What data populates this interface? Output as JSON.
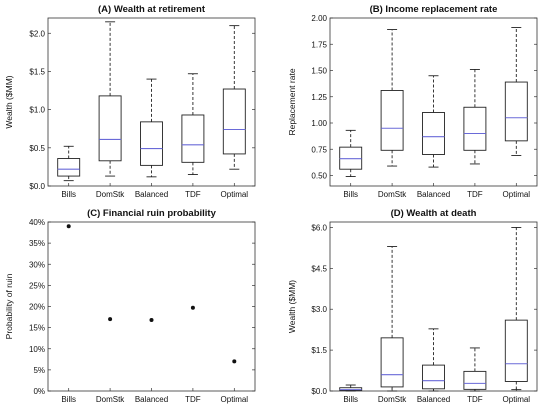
{
  "colors": {
    "box_stroke": "#222222",
    "median": "#6a6ad8",
    "axis": "#333333",
    "point": "#111111"
  },
  "chart_data": [
    {
      "panel": "A",
      "type": "box",
      "title": "(A) Wealth at retirement",
      "ylabel": "Wealth ($MM)",
      "categories": [
        "Bills",
        "DomStk",
        "Balanced",
        "TDF",
        "Optimal"
      ],
      "ylim": [
        0,
        2.2
      ],
      "yticks": [
        0,
        0.5,
        1.0,
        1.5,
        2.0
      ],
      "yticklabels": [
        "$0.0",
        "$0.5",
        "$1.0",
        "$1.5",
        "$2.0"
      ],
      "boxes": [
        {
          "min": 0.07,
          "q1": 0.13,
          "median": 0.22,
          "q3": 0.36,
          "max": 0.52
        },
        {
          "min": 0.13,
          "q1": 0.33,
          "median": 0.61,
          "q3": 1.18,
          "max": 2.15
        },
        {
          "min": 0.12,
          "q1": 0.27,
          "median": 0.49,
          "q3": 0.84,
          "max": 1.4
        },
        {
          "min": 0.15,
          "q1": 0.31,
          "median": 0.54,
          "q3": 0.93,
          "max": 1.47
        },
        {
          "min": 0.22,
          "q1": 0.42,
          "median": 0.74,
          "q3": 1.27,
          "max": 2.1
        }
      ]
    },
    {
      "panel": "B",
      "type": "box",
      "title": "(B) Income replacement rate",
      "ylabel": "Replacement rate",
      "categories": [
        "Bills",
        "DomStk",
        "Balanced",
        "TDF",
        "Optimal"
      ],
      "ylim": [
        0.4,
        2.0
      ],
      "yticks": [
        0.5,
        0.75,
        1.0,
        1.25,
        1.5,
        1.75,
        2.0
      ],
      "yticklabels": [
        "0.50",
        "0.75",
        "1.00",
        "1.25",
        "1.50",
        "1.75",
        "2.00"
      ],
      "boxes": [
        {
          "min": 0.49,
          "q1": 0.56,
          "median": 0.66,
          "q3": 0.77,
          "max": 0.93
        },
        {
          "min": 0.59,
          "q1": 0.74,
          "median": 0.95,
          "q3": 1.31,
          "max": 1.89
        },
        {
          "min": 0.58,
          "q1": 0.7,
          "median": 0.87,
          "q3": 1.1,
          "max": 1.45
        },
        {
          "min": 0.61,
          "q1": 0.74,
          "median": 0.9,
          "q3": 1.15,
          "max": 1.51
        },
        {
          "min": 0.69,
          "q1": 0.83,
          "median": 1.05,
          "q3": 1.39,
          "max": 1.91
        }
      ]
    },
    {
      "panel": "C",
      "type": "scatter",
      "title": "(C) Financial ruin probability",
      "ylabel": "Probability of ruin",
      "categories": [
        "Bills",
        "DomStk",
        "Balanced",
        "TDF",
        "Optimal"
      ],
      "ylim": [
        0,
        0.4
      ],
      "yticks": [
        0,
        0.05,
        0.1,
        0.15,
        0.2,
        0.25,
        0.3,
        0.35,
        0.4
      ],
      "yticklabels": [
        "0%",
        "5%",
        "10%",
        "15%",
        "20%",
        "25%",
        "30%",
        "35%",
        "40%"
      ],
      "values": [
        0.39,
        0.17,
        0.168,
        0.197,
        0.07
      ]
    },
    {
      "panel": "D",
      "type": "box",
      "title": "(D) Wealth at death",
      "ylabel": "Wealth ($MM)",
      "categories": [
        "Bills",
        "DomStk",
        "Balanced",
        "TDF",
        "Optimal"
      ],
      "ylim": [
        0,
        6.2
      ],
      "yticks": [
        0,
        1.5,
        3.0,
        4.5,
        6.0
      ],
      "yticklabels": [
        "$0.0",
        "$1.5",
        "$3.0",
        "$4.5",
        "$6.0"
      ],
      "boxes": [
        {
          "min": 0.0,
          "q1": 0.02,
          "median": 0.05,
          "q3": 0.12,
          "max": 0.22
        },
        {
          "min": 0.0,
          "q1": 0.15,
          "median": 0.6,
          "q3": 1.95,
          "max": 5.3
        },
        {
          "min": 0.0,
          "q1": 0.08,
          "median": 0.38,
          "q3": 0.95,
          "max": 2.28
        },
        {
          "min": 0.0,
          "q1": 0.06,
          "median": 0.28,
          "q3": 0.72,
          "max": 1.58
        },
        {
          "min": 0.05,
          "q1": 0.35,
          "median": 1.0,
          "q3": 2.6,
          "max": 6.0
        }
      ]
    }
  ]
}
